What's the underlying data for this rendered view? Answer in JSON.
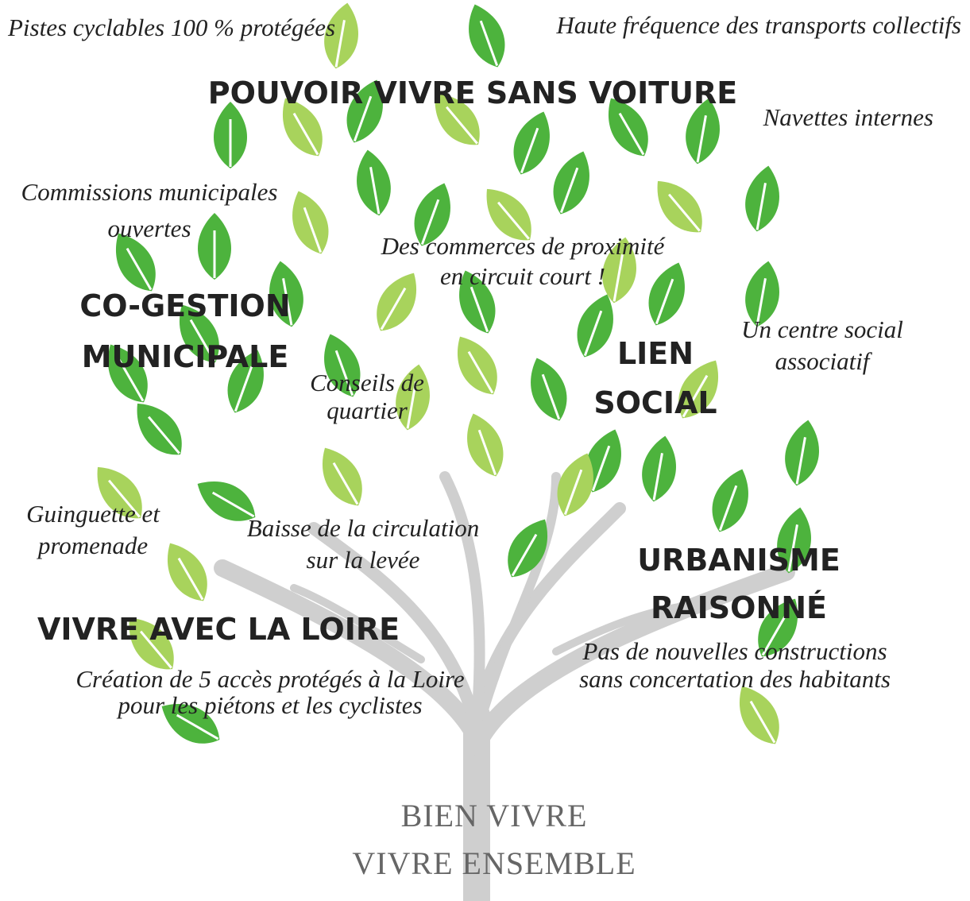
{
  "themes": [
    {
      "lines": [
        "POUVOIR VIVRE SANS VOITURE"
      ]
    },
    {
      "lines": [
        "CO-GESTION",
        "MUNICIPALE"
      ]
    },
    {
      "lines": [
        "LIEN",
        "SOCIAL"
      ]
    },
    {
      "lines": [
        "URBANISME",
        "RAISONNÉ"
      ]
    },
    {
      "lines": [
        "VIVRE AVEC LA LOIRE"
      ]
    }
  ],
  "items": [
    {
      "lines": [
        "Pistes cyclables 100 % protégées"
      ]
    },
    {
      "lines": [
        "Haute fréquence des transports collectifs"
      ]
    },
    {
      "lines": [
        "Navettes internes"
      ]
    },
    {
      "lines": [
        "Commissions municipales",
        "ouvertes"
      ]
    },
    {
      "lines": [
        "Des commerces de proximité",
        "en circuit court !"
      ]
    },
    {
      "lines": [
        "Un centre social",
        "associatif"
      ]
    },
    {
      "lines": [
        "Conseils de",
        "quartier"
      ]
    },
    {
      "lines": [
        "Guinguette et",
        "promenade"
      ]
    },
    {
      "lines": [
        "Baisse de la circulation",
        "sur la levée"
      ]
    },
    {
      "lines": [
        "Pas de nouvelles constructions",
        "sans concertation des habitants"
      ]
    },
    {
      "lines": [
        "Création de 5 accès protégés à la Loire",
        "pour les  piétons et les cyclistes"
      ]
    }
  ],
  "footer": {
    "lines": [
      "BIEN VIVRE",
      "VIVRE ENSEMBLE"
    ]
  }
}
